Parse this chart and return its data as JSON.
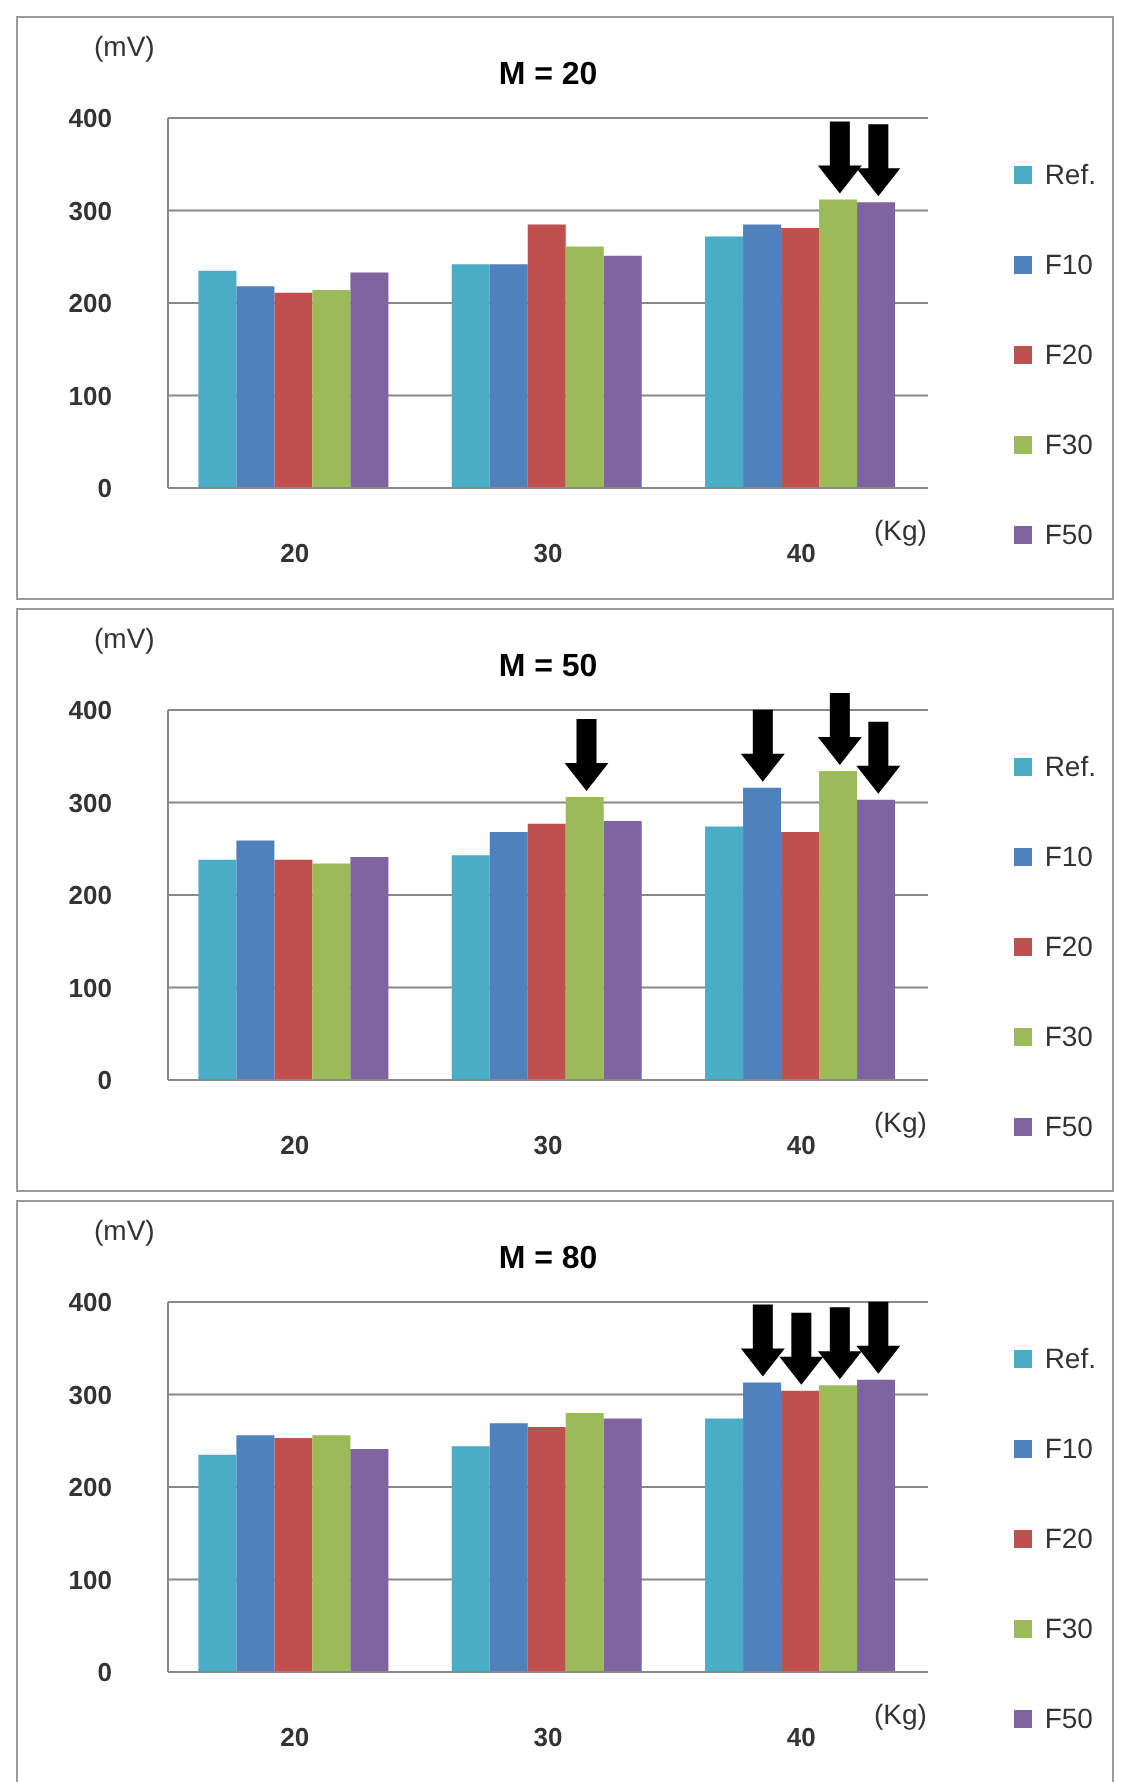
{
  "chart_data": [
    {
      "type": "bar",
      "title": "M = 20",
      "ylabel": "(mV)",
      "xlabel": "(Kg)",
      "categories": [
        "20",
        "30",
        "40"
      ],
      "ylim": [
        0,
        400
      ],
      "yticks": [
        0,
        100,
        200,
        300,
        400
      ],
      "grid": "y",
      "legend": "right",
      "series": [
        {
          "name": "Ref.",
          "color": "#4bacc6",
          "values": [
            235,
            242,
            272
          ]
        },
        {
          "name": "F10",
          "color": "#4f81bd",
          "values": [
            218,
            242,
            285
          ]
        },
        {
          "name": "F20",
          "color": "#c0504d",
          "values": [
            211,
            285,
            281
          ]
        },
        {
          "name": "F30",
          "color": "#9bbb59",
          "values": [
            214,
            261,
            312
          ]
        },
        {
          "name": "F50",
          "color": "#8064a2",
          "values": [
            233,
            251,
            309
          ]
        }
      ]
    },
    {
      "type": "bar",
      "title": "M = 50",
      "ylabel": "(mV)",
      "xlabel": "(Kg)",
      "categories": [
        "20",
        "30",
        "40"
      ],
      "ylim": [
        0,
        400
      ],
      "yticks": [
        0,
        100,
        200,
        300,
        400
      ],
      "grid": "y",
      "legend": "right",
      "series": [
        {
          "name": "Ref.",
          "color": "#4bacc6",
          "values": [
            238,
            243,
            274
          ]
        },
        {
          "name": "F10",
          "color": "#4f81bd",
          "values": [
            259,
            268,
            316
          ]
        },
        {
          "name": "F20",
          "color": "#c0504d",
          "values": [
            238,
            277,
            268
          ]
        },
        {
          "name": "F30",
          "color": "#9bbb59",
          "values": [
            234,
            306,
            334
          ]
        },
        {
          "name": "F50",
          "color": "#8064a2",
          "values": [
            241,
            280,
            303
          ]
        }
      ]
    },
    {
      "type": "bar",
      "title": "M = 80",
      "ylabel": "(mV)",
      "xlabel": "(Kg)",
      "categories": [
        "20",
        "30",
        "40"
      ],
      "ylim": [
        0,
        400
      ],
      "yticks": [
        0,
        100,
        200,
        300,
        400
      ],
      "grid": "y",
      "legend": "right",
      "series": [
        {
          "name": "Ref.",
          "color": "#4bacc6",
          "values": [
            235,
            244,
            274
          ]
        },
        {
          "name": "F10",
          "color": "#4f81bd",
          "values": [
            256,
            269,
            313
          ]
        },
        {
          "name": "F20",
          "color": "#c0504d",
          "values": [
            253,
            265,
            304
          ]
        },
        {
          "name": "F30",
          "color": "#9bbb59",
          "values": [
            256,
            280,
            310
          ]
        },
        {
          "name": "F50",
          "color": "#8064a2",
          "values": [
            241,
            274,
            316
          ]
        }
      ]
    }
  ]
}
